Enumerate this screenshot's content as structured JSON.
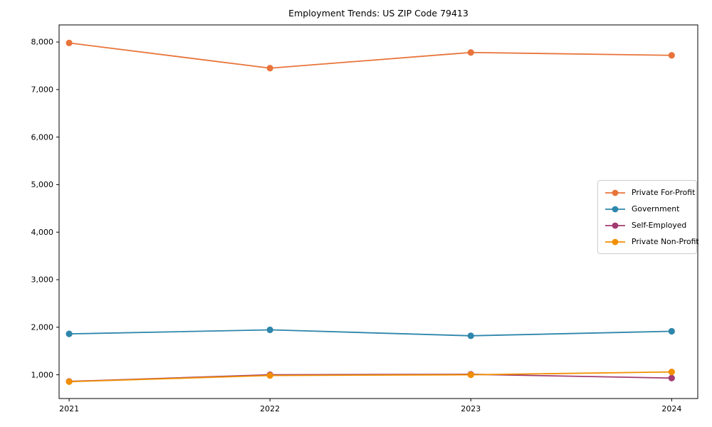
{
  "chart_data": {
    "type": "line",
    "title": "Employment Trends: US ZIP Code 79413",
    "xlabel": "",
    "ylabel": "",
    "x": [
      2021,
      2022,
      2023,
      2024
    ],
    "x_tick_labels": [
      "2021",
      "2022",
      "2023",
      "2024"
    ],
    "series": [
      {
        "name": "Private For-Profit",
        "color": "#E8743B",
        "values": [
          7980,
          7450,
          7780,
          7720
        ]
      },
      {
        "name": "Government",
        "color": "#2E86AB",
        "values": [
          1860,
          1945,
          1820,
          1915
        ]
      },
      {
        "name": "Self-Employed",
        "color": "#A23B72",
        "values": [
          860,
          1000,
          1010,
          930
        ]
      },
      {
        "name": "Private Non-Profit",
        "color": "#F18F01",
        "values": [
          855,
          985,
          1000,
          1060
        ]
      }
    ],
    "yticks": [
      1000,
      2000,
      3000,
      4000,
      5000,
      6000,
      7000,
      8000
    ],
    "ytick_labels": [
      "1,000",
      "2,000",
      "3,000",
      "4,000",
      "5,000",
      "6,000",
      "7,000",
      "8,000"
    ],
    "ylim": [
      500,
      8360
    ],
    "xlim": [
      2020.95,
      2024.13
    ],
    "grid": false,
    "legend_position": "center right",
    "marker": "circle",
    "axis_color": "#000000",
    "text_color": "#000000",
    "background_color": "#ffffff"
  }
}
